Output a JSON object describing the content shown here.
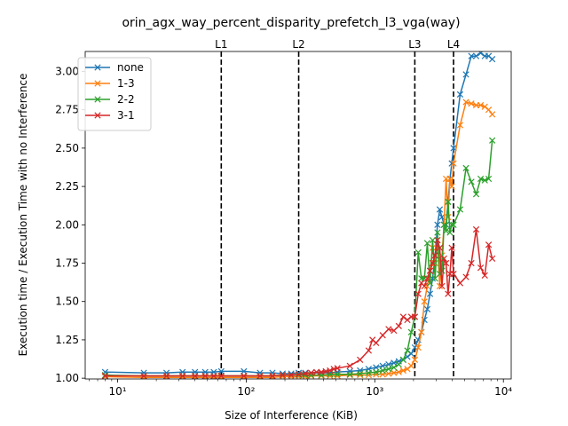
{
  "chart_data": {
    "type": "line",
    "title": "orin_agx_way_percent_disparity_prefetch_l3_vga(way)",
    "xlabel": "Size of Interference (KiB)",
    "ylabel": "Execution time / Execution Time with no Interference",
    "xscale": "log",
    "xlim": [
      5.6,
      11500
    ],
    "ylim": [
      0.995,
      3.13
    ],
    "x_ticks": [
      10,
      100,
      1000,
      10000
    ],
    "x_tick_labels": [
      "10¹",
      "10²",
      "10³",
      "10⁴"
    ],
    "y_ticks": [
      1.0,
      1.25,
      1.5,
      1.75,
      2.0,
      2.25,
      2.5,
      2.75,
      3.0
    ],
    "y_tick_labels": [
      "1.00",
      "1.25",
      "1.50",
      "1.75",
      "2.00",
      "2.25",
      "2.50",
      "2.75",
      "3.00"
    ],
    "legend_position": "top-left",
    "vertical_lines": [
      {
        "label": "L1",
        "x": 64
      },
      {
        "label": "L2",
        "x": 256
      },
      {
        "label": "L3",
        "x": 2048
      },
      {
        "label": "L4",
        "x": 4096
      }
    ],
    "series": [
      {
        "name": "none",
        "color": "#1f77b4",
        "x": [
          8,
          16,
          24,
          32,
          40,
          48,
          56,
          64,
          96,
          128,
          160,
          192,
          224,
          256,
          288,
          320,
          384,
          448,
          512,
          640,
          768,
          896,
          1024,
          1152,
          1280,
          1408,
          1536,
          1664,
          1792,
          1920,
          2048,
          2176,
          2304,
          2432,
          2560,
          2688,
          2816,
          2944,
          3072,
          3200,
          3328,
          3456,
          3584,
          3712,
          3840,
          3968,
          4096,
          4608,
          5120,
          5632,
          6144,
          6656,
          7168,
          7680,
          8192
        ],
        "y": [
          1.04,
          1.035,
          1.035,
          1.04,
          1.04,
          1.04,
          1.04,
          1.045,
          1.045,
          1.035,
          1.035,
          1.03,
          1.03,
          1.035,
          1.035,
          1.035,
          1.035,
          1.035,
          1.04,
          1.045,
          1.05,
          1.06,
          1.07,
          1.08,
          1.09,
          1.1,
          1.11,
          1.12,
          1.14,
          1.16,
          1.2,
          1.25,
          1.3,
          1.38,
          1.45,
          1.55,
          1.65,
          1.8,
          2.0,
          2.1,
          2.05,
          2.0,
          2.0,
          2.15,
          2.3,
          2.4,
          2.5,
          2.85,
          2.98,
          3.1,
          3.1,
          3.12,
          3.1,
          3.1,
          3.08
        ]
      },
      {
        "name": "1-3",
        "color": "#ff7f0e",
        "x": [
          8,
          16,
          24,
          32,
          40,
          48,
          56,
          64,
          96,
          128,
          160,
          192,
          224,
          256,
          288,
          320,
          384,
          448,
          512,
          640,
          768,
          896,
          1024,
          1152,
          1280,
          1408,
          1536,
          1664,
          1792,
          1920,
          2048,
          2176,
          2304,
          2432,
          2560,
          2688,
          2816,
          2944,
          3072,
          3200,
          3328,
          3456,
          3584,
          3712,
          3840,
          3968,
          4096,
          4608,
          5120,
          5632,
          6144,
          6656,
          7168,
          7680,
          8192
        ],
        "y": [
          1.01,
          1.005,
          1.005,
          1.005,
          1.005,
          1.005,
          1.005,
          1.005,
          1.005,
          1.005,
          1.005,
          1.01,
          1.01,
          1.01,
          1.01,
          1.015,
          1.015,
          1.015,
          1.015,
          1.02,
          1.02,
          1.02,
          1.025,
          1.025,
          1.03,
          1.035,
          1.04,
          1.05,
          1.06,
          1.08,
          1.12,
          1.2,
          1.3,
          1.5,
          1.6,
          1.7,
          1.85,
          1.75,
          1.9,
          1.6,
          1.8,
          2.0,
          2.3,
          2.05,
          2.3,
          2.25,
          2.4,
          2.65,
          2.8,
          2.79,
          2.78,
          2.78,
          2.77,
          2.75,
          2.72
        ]
      },
      {
        "name": "2-2",
        "color": "#2ca02c",
        "x": [
          8,
          16,
          24,
          32,
          40,
          48,
          56,
          64,
          96,
          128,
          160,
          192,
          224,
          256,
          288,
          320,
          384,
          448,
          512,
          640,
          768,
          896,
          1024,
          1152,
          1280,
          1408,
          1536,
          1664,
          1792,
          1920,
          2048,
          2176,
          2304,
          2432,
          2560,
          2688,
          2816,
          2944,
          3072,
          3200,
          3328,
          3456,
          3584,
          3712,
          3840,
          3968,
          4096,
          4608,
          5120,
          5632,
          6144,
          6656,
          7168,
          7680,
          8192
        ],
        "y": [
          1.02,
          1.015,
          1.015,
          1.015,
          1.015,
          1.015,
          1.015,
          1.015,
          1.015,
          1.015,
          1.015,
          1.02,
          1.02,
          1.02,
          1.02,
          1.02,
          1.02,
          1.025,
          1.025,
          1.025,
          1.03,
          1.035,
          1.04,
          1.05,
          1.06,
          1.07,
          1.09,
          1.12,
          1.18,
          1.3,
          1.4,
          1.82,
          1.65,
          1.65,
          1.88,
          1.62,
          1.9,
          1.65,
          1.95,
          1.68,
          1.7,
          2.0,
          1.96,
          2.15,
          1.95,
          2.0,
          2.0,
          2.1,
          2.37,
          2.28,
          2.2,
          2.3,
          2.29,
          2.3,
          2.55
        ]
      },
      {
        "name": "3-1",
        "color": "#d62728",
        "x": [
          8,
          16,
          24,
          32,
          40,
          48,
          56,
          64,
          96,
          128,
          160,
          192,
          224,
          256,
          288,
          320,
          352,
          384,
          416,
          448,
          480,
          512,
          640,
          768,
          896,
          960,
          1024,
          1152,
          1280,
          1408,
          1536,
          1664,
          1792,
          1920,
          2048,
          2176,
          2304,
          2432,
          2560,
          2688,
          2816,
          2944,
          3072,
          3200,
          3328,
          3456,
          3584,
          3712,
          3840,
          3968,
          4096,
          4608,
          5120,
          5632,
          6144,
          6656,
          7168,
          7680,
          8192
        ],
        "y": [
          1.015,
          1.015,
          1.015,
          1.015,
          1.015,
          1.015,
          1.015,
          1.015,
          1.015,
          1.015,
          1.015,
          1.02,
          1.02,
          1.025,
          1.03,
          1.035,
          1.04,
          1.04,
          1.045,
          1.05,
          1.06,
          1.065,
          1.08,
          1.12,
          1.18,
          1.25,
          1.23,
          1.28,
          1.32,
          1.31,
          1.34,
          1.4,
          1.38,
          1.4,
          1.4,
          1.55,
          1.62,
          1.6,
          1.65,
          1.7,
          1.75,
          1.8,
          1.9,
          1.85,
          1.6,
          1.78,
          1.75,
          1.55,
          1.68,
          1.85,
          1.68,
          1.62,
          1.66,
          1.75,
          1.97,
          1.72,
          1.67,
          1.87,
          1.78
        ]
      }
    ]
  }
}
